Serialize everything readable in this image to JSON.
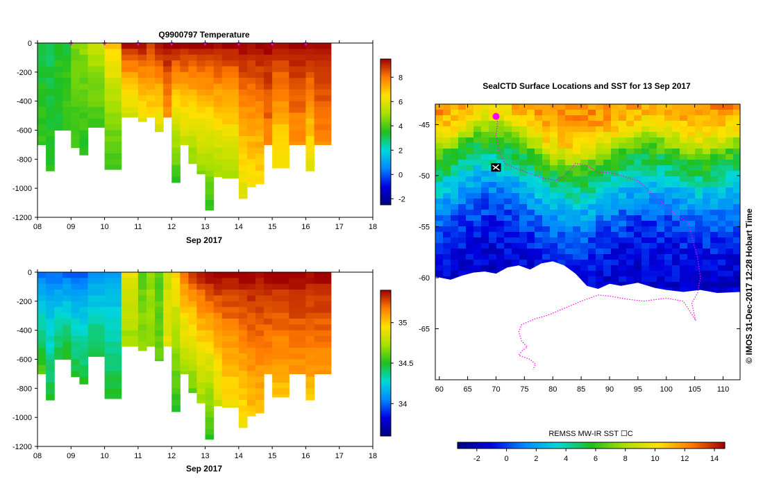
{
  "chart_data": [
    {
      "type": "heatmap",
      "title": "Q9900797  Temperature",
      "xlabel": "Sep 2017",
      "ylabel": "",
      "x_ticks": [
        "08",
        "09",
        "10",
        "11",
        "12",
        "13",
        "14",
        "15",
        "16",
        "17",
        "18"
      ],
      "y_ticks": [
        "0",
        "-200",
        "-400",
        "-600",
        "-800",
        "-1000",
        "-1200"
      ],
      "xlim": [
        8,
        18
      ],
      "ylim": [
        -1200,
        0
      ],
      "colorbar": {
        "ticks": [
          "8",
          "6",
          "4",
          "2",
          "0",
          "-2"
        ],
        "range": [
          -2.5,
          9.5
        ]
      },
      "profile_markers_days": [
        9,
        10,
        11,
        12,
        13,
        14,
        15,
        16
      ],
      "profiles": [
        {
          "x": 8.0,
          "max_depth": 700,
          "surface": 3.2,
          "deep": 3.8
        },
        {
          "x": 8.25,
          "max_depth": 880,
          "surface": 3.0,
          "deep": 3.6
        },
        {
          "x": 8.5,
          "max_depth": 600,
          "surface": 3.6,
          "deep": 3.4
        },
        {
          "x": 8.75,
          "max_depth": 600,
          "surface": 3.4,
          "deep": 3.9
        },
        {
          "x": 9.0,
          "max_depth": 720,
          "surface": 4.5,
          "deep": 3.8
        },
        {
          "x": 9.25,
          "max_depth": 770,
          "surface": 4.8,
          "deep": 3.5
        },
        {
          "x": 9.5,
          "max_depth": 580,
          "surface": 5.5,
          "deep": 3.8
        },
        {
          "x": 10.0,
          "max_depth": 870,
          "surface": 7.0,
          "deep": 3.6
        },
        {
          "x": 10.5,
          "max_depth": 510,
          "surface": 9.3,
          "deep": 5.5
        },
        {
          "x": 11.0,
          "max_depth": 540,
          "surface": 9.3,
          "deep": 5.8
        },
        {
          "x": 11.25,
          "max_depth": 510,
          "surface": 8.6,
          "deep": 6.4
        },
        {
          "x": 11.5,
          "max_depth": 610,
          "surface": 9.3,
          "deep": 5.7
        },
        {
          "x": 11.75,
          "max_depth": 510,
          "surface": 9.5,
          "deep": 7.5
        },
        {
          "x": 12.0,
          "max_depth": 960,
          "surface": 9.5,
          "deep": 3.5
        },
        {
          "x": 12.25,
          "max_depth": 700,
          "surface": 9.5,
          "deep": 5.2
        },
        {
          "x": 12.5,
          "max_depth": 830,
          "surface": 9.5,
          "deep": 4.5
        },
        {
          "x": 12.75,
          "max_depth": 900,
          "surface": 9.5,
          "deep": 4.6
        },
        {
          "x": 13.0,
          "max_depth": 1150,
          "surface": 9.5,
          "deep": 3.6
        },
        {
          "x": 13.25,
          "max_depth": 920,
          "surface": 9.5,
          "deep": 4.8
        },
        {
          "x": 13.5,
          "max_depth": 930,
          "surface": 9.5,
          "deep": 5.0
        },
        {
          "x": 14.0,
          "max_depth": 1070,
          "surface": 9.5,
          "deep": 5.8
        },
        {
          "x": 14.25,
          "max_depth": 990,
          "surface": 9.5,
          "deep": 6.2
        },
        {
          "x": 14.5,
          "max_depth": 970,
          "surface": 9.5,
          "deep": 6.4
        },
        {
          "x": 14.75,
          "max_depth": 700,
          "surface": 9.5,
          "deep": 7.8
        },
        {
          "x": 15.0,
          "max_depth": 860,
          "surface": 9.5,
          "deep": 6.0
        },
        {
          "x": 15.5,
          "max_depth": 700,
          "surface": 9.5,
          "deep": 7.5
        },
        {
          "x": 16.0,
          "max_depth": 880,
          "surface": 9.5,
          "deep": 5.9
        },
        {
          "x": 16.25,
          "max_depth": 700,
          "surface": 9.5,
          "deep": 7.8
        }
      ]
    },
    {
      "type": "heatmap",
      "title": "",
      "xlabel": "Sep 2017",
      "ylabel": "",
      "x_ticks": [
        "08",
        "09",
        "10",
        "11",
        "12",
        "13",
        "14",
        "15",
        "16",
        "17",
        "18"
      ],
      "y_ticks": [
        "0",
        "-200",
        "-400",
        "-600",
        "-800",
        "-1000",
        "-1200"
      ],
      "xlim": [
        8,
        18
      ],
      "ylim": [
        -1200,
        0
      ],
      "colorbar": {
        "ticks": [
          "35",
          "34.5",
          "34"
        ],
        "range": [
          33.6,
          35.4
        ]
      },
      "profiles": [
        {
          "x": 8.0,
          "max_depth": 700,
          "surface": 34.0,
          "deep": 34.6
        },
        {
          "x": 8.25,
          "max_depth": 880,
          "surface": 34.0,
          "deep": 34.5
        },
        {
          "x": 8.5,
          "max_depth": 600,
          "surface": 34.0,
          "deep": 34.5
        },
        {
          "x": 8.75,
          "max_depth": 600,
          "surface": 34.0,
          "deep": 34.55
        },
        {
          "x": 9.0,
          "max_depth": 720,
          "surface": 34.0,
          "deep": 34.5
        },
        {
          "x": 9.25,
          "max_depth": 770,
          "surface": 34.0,
          "deep": 34.5
        },
        {
          "x": 9.5,
          "max_depth": 580,
          "surface": 34.05,
          "deep": 34.5
        },
        {
          "x": 10.0,
          "max_depth": 870,
          "surface": 34.1,
          "deep": 34.5
        },
        {
          "x": 10.5,
          "max_depth": 510,
          "surface": 34.9,
          "deep": 34.7
        },
        {
          "x": 11.0,
          "max_depth": 540,
          "surface": 34.6,
          "deep": 34.7
        },
        {
          "x": 11.25,
          "max_depth": 510,
          "surface": 34.7,
          "deep": 34.7
        },
        {
          "x": 11.5,
          "max_depth": 610,
          "surface": 34.6,
          "deep": 34.6
        },
        {
          "x": 11.75,
          "max_depth": 510,
          "surface": 34.8,
          "deep": 34.9
        },
        {
          "x": 12.0,
          "max_depth": 960,
          "surface": 35.0,
          "deep": 34.5
        },
        {
          "x": 12.25,
          "max_depth": 700,
          "surface": 35.2,
          "deep": 34.7
        },
        {
          "x": 12.5,
          "max_depth": 830,
          "surface": 35.3,
          "deep": 34.6
        },
        {
          "x": 12.75,
          "max_depth": 900,
          "surface": 35.35,
          "deep": 34.7
        },
        {
          "x": 13.0,
          "max_depth": 1150,
          "surface": 35.4,
          "deep": 34.5
        },
        {
          "x": 13.25,
          "max_depth": 920,
          "surface": 35.4,
          "deep": 34.8
        },
        {
          "x": 13.5,
          "max_depth": 930,
          "surface": 35.4,
          "deep": 34.9
        },
        {
          "x": 14.0,
          "max_depth": 1070,
          "surface": 35.4,
          "deep": 34.9
        },
        {
          "x": 14.25,
          "max_depth": 990,
          "surface": 35.4,
          "deep": 35.0
        },
        {
          "x": 14.5,
          "max_depth": 970,
          "surface": 35.4,
          "deep": 35.0
        },
        {
          "x": 14.75,
          "max_depth": 700,
          "surface": 35.4,
          "deep": 35.1
        },
        {
          "x": 15.0,
          "max_depth": 860,
          "surface": 35.4,
          "deep": 35.0
        },
        {
          "x": 15.5,
          "max_depth": 700,
          "surface": 35.4,
          "deep": 35.1
        },
        {
          "x": 16.0,
          "max_depth": 880,
          "surface": 35.4,
          "deep": 35.0
        },
        {
          "x": 16.25,
          "max_depth": 700,
          "surface": 35.4,
          "deep": 35.1
        }
      ]
    },
    {
      "type": "heatmap",
      "title": "SealCTD Surface Locations and SST for 13 Sep 2017",
      "xlabel": "",
      "ylabel": "",
      "x_ticks": [
        "60",
        "65",
        "70",
        "75",
        "80",
        "85",
        "90",
        "95",
        "100",
        "105",
        "110"
      ],
      "y_ticks": [
        "-45",
        "-50",
        "-55",
        "-60",
        "-65"
      ],
      "xlim": [
        59.3,
        113
      ],
      "ylim": [
        -70,
        -43
      ],
      "colorbar": {
        "label": "REMSS MW-IR SST ☐C",
        "ticks": [
          "-2",
          "0",
          "2",
          "4",
          "6",
          "8",
          "10",
          "12",
          "14"
        ],
        "range": [
          -3.3,
          14.7
        ]
      },
      "ice_edge": [
        [
          59.3,
          -59.9
        ],
        [
          62,
          -60.2
        ],
        [
          64,
          -59.8
        ],
        [
          66,
          -59.5
        ],
        [
          68,
          -59.4
        ],
        [
          70,
          -59.6
        ],
        [
          72,
          -59.0
        ],
        [
          74,
          -58.8
        ],
        [
          76,
          -59.2
        ],
        [
          78,
          -58.6
        ],
        [
          80,
          -58.4
        ],
        [
          82,
          -58.8
        ],
        [
          84,
          -59.6
        ],
        [
          86,
          -60.8
        ],
        [
          88,
          -61.1
        ],
        [
          90,
          -60.6
        ],
        [
          92,
          -60.8
        ],
        [
          95,
          -60.5
        ],
        [
          98,
          -61.0
        ],
        [
          100,
          -61.2
        ],
        [
          103,
          -61.4
        ],
        [
          106,
          -61.2
        ],
        [
          109,
          -61.5
        ],
        [
          113,
          -61.4
        ]
      ],
      "sst_bands": [
        {
          "lat": -43.0,
          "sst": 12.0
        },
        {
          "lat": -45.5,
          "sst": 10.0
        },
        {
          "lat": -47.5,
          "sst": 6.5
        },
        {
          "lat": -49.5,
          "sst": 4.5
        },
        {
          "lat": -51.5,
          "sst": 2.5
        },
        {
          "lat": -54.0,
          "sst": 0.5
        },
        {
          "lat": -57.0,
          "sst": -0.8
        },
        {
          "lat": -60.5,
          "sst": -1.5
        }
      ],
      "track": [
        [
          70.0,
          -44.2
        ],
        [
          70.3,
          -44.8
        ],
        [
          70.0,
          -46.0
        ],
        [
          70.5,
          -47.5
        ],
        [
          71.5,
          -48.8
        ],
        [
          73.5,
          -49.3
        ],
        [
          76.0,
          -49.8
        ],
        [
          78.0,
          -50.2
        ],
        [
          80.5,
          -50.5
        ],
        [
          82.5,
          -49.8
        ],
        [
          84.0,
          -48.8
        ],
        [
          86.0,
          -49.0
        ],
        [
          88.0,
          -49.7
        ],
        [
          90.0,
          -49.7
        ],
        [
          92.0,
          -50.0
        ],
        [
          95.0,
          -50.5
        ],
        [
          98.0,
          -52.0
        ],
        [
          100.0,
          -53.0
        ],
        [
          102.0,
          -54.0
        ],
        [
          104.0,
          -54.6
        ],
        [
          104.5,
          -56.0
        ],
        [
          105.5,
          -58.0
        ],
        [
          106.0,
          -60.0
        ],
        [
          105.5,
          -61.5
        ],
        [
          104.5,
          -62.5
        ],
        [
          105.0,
          -63.8
        ],
        [
          105.2,
          -64.2
        ],
        [
          103.0,
          -62.3
        ],
        [
          100.0,
          -62.0
        ],
        [
          96.0,
          -62.3
        ],
        [
          93.0,
          -62.1
        ],
        [
          90.0,
          -61.8
        ],
        [
          88.0,
          -61.7
        ],
        [
          85.0,
          -62.3
        ],
        [
          82.0,
          -63.0
        ],
        [
          79.0,
          -63.7
        ],
        [
          77.0,
          -64.0
        ],
        [
          74.5,
          -64.6
        ],
        [
          74.0,
          -65.3
        ],
        [
          74.5,
          -66.2
        ],
        [
          75.5,
          -66.8
        ],
        [
          74.5,
          -67.2
        ],
        [
          74.0,
          -67.6
        ],
        [
          76.0,
          -68.0
        ],
        [
          77.0,
          -68.5
        ],
        [
          76.5,
          -69.0
        ]
      ],
      "seal_marker": {
        "lon": 70.0,
        "lat": -44.2
      },
      "black_marker": {
        "lon": 70.0,
        "lat": -49.2
      }
    }
  ],
  "credit": "©  IMOS 31-Dec-2017 12:28 Hobart Time"
}
